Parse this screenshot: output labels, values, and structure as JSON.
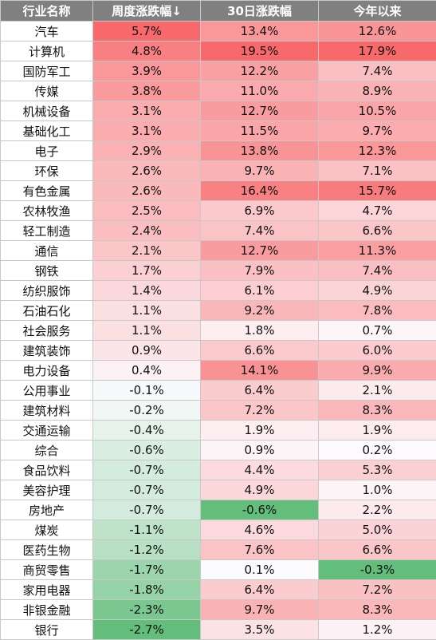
{
  "chart_data": {
    "type": "table",
    "columns": [
      "行业名称",
      "周度涨跌幅↓",
      "30日涨跌幅",
      "今年以来"
    ],
    "rows": [
      [
        "汽车",
        5.7,
        13.4,
        12.6
      ],
      [
        "计算机",
        4.8,
        19.5,
        17.9
      ],
      [
        "国防军工",
        3.9,
        12.2,
        7.4
      ],
      [
        "传媒",
        3.8,
        11.0,
        8.9
      ],
      [
        "机械设备",
        3.1,
        12.7,
        10.5
      ],
      [
        "基础化工",
        3.1,
        11.5,
        9.7
      ],
      [
        "电子",
        2.9,
        13.8,
        12.3
      ],
      [
        "环保",
        2.6,
        9.7,
        7.1
      ],
      [
        "有色金属",
        2.6,
        16.4,
        15.7
      ],
      [
        "农林牧渔",
        2.5,
        6.9,
        4.7
      ],
      [
        "轻工制造",
        2.4,
        7.4,
        6.6
      ],
      [
        "通信",
        2.1,
        12.7,
        11.3
      ],
      [
        "钢铁",
        1.7,
        7.9,
        7.4
      ],
      [
        "纺织服饰",
        1.4,
        6.1,
        4.9
      ],
      [
        "石油石化",
        1.1,
        9.2,
        7.8
      ],
      [
        "社会服务",
        1.1,
        1.8,
        0.7
      ],
      [
        "建筑装饰",
        0.9,
        6.6,
        6.0
      ],
      [
        "电力设备",
        0.4,
        14.1,
        9.9
      ],
      [
        "公用事业",
        -0.1,
        6.4,
        2.1
      ],
      [
        "建筑材料",
        -0.2,
        7.2,
        8.3
      ],
      [
        "交通运输",
        -0.4,
        1.9,
        1.9
      ],
      [
        "综合",
        -0.6,
        0.9,
        0.2
      ],
      [
        "食品饮料",
        -0.7,
        4.4,
        5.3
      ],
      [
        "美容护理",
        -0.7,
        4.9,
        1.0
      ],
      [
        "房地产",
        -0.7,
        -0.6,
        2.2
      ],
      [
        "煤炭",
        -1.1,
        4.6,
        5.0
      ],
      [
        "医药生物",
        -1.2,
        7.6,
        6.6
      ],
      [
        "商贸零售",
        -1.7,
        0.1,
        -0.3
      ],
      [
        "家用电器",
        -1.8,
        6.4,
        7.2
      ],
      [
        "非银金融",
        -2.3,
        9.7,
        8.3
      ],
      [
        "银行",
        -2.7,
        3.5,
        1.2
      ]
    ],
    "unit": "%",
    "colors": {
      "positive_max": "#f8696b",
      "negative_max": "#63be7b",
      "neutral": "#fcfcff",
      "header": "#808080"
    }
  }
}
